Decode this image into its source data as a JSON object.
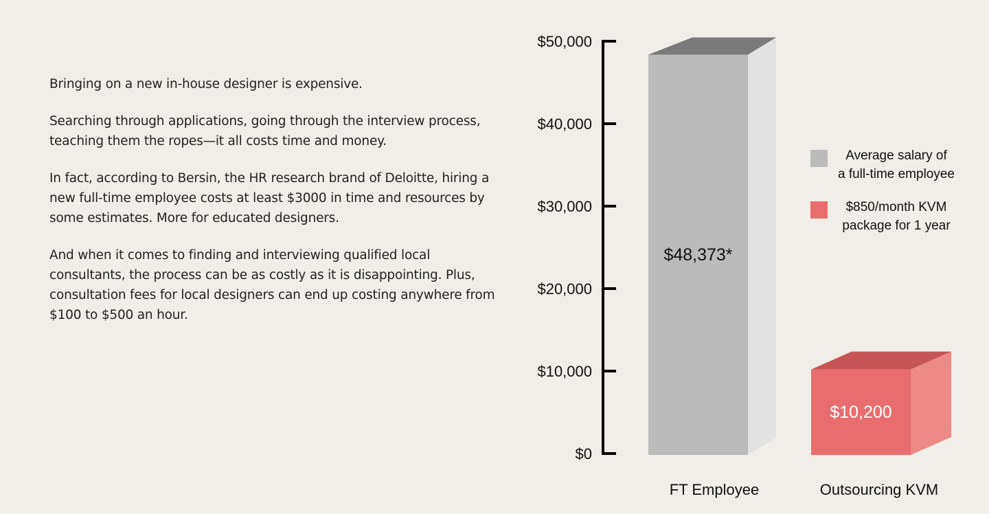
{
  "article": {
    "paragraphs": [
      "Bringing on a new in-house designer is expensive.",
      "Searching through applications, going through the interview process, teaching them the ropes—it all costs time and money.",
      "In fact, according to Bersin, the HR research brand of Deloitte, hiring a new full-time employee costs at least $3000 in time and resources by some estimates. More for educated designers.",
      "And when it comes to finding and interviewing qualified local consultants, the process can be as costly as it is disappointing. Plus, consultation fees for local designers can end up costing anywhere from $100 to $500 an hour."
    ]
  },
  "chart_data": {
    "type": "bar",
    "style": "3d-column",
    "categories": [
      "FT Employee",
      "Outsourcing KVM"
    ],
    "values": [
      48373,
      10200
    ],
    "data_labels": [
      "$48,373*",
      "$10,200"
    ],
    "ylim": [
      0,
      50000
    ],
    "yticks": [
      0,
      10000,
      20000,
      30000,
      40000,
      50000
    ],
    "ytick_labels": [
      "$0",
      "$10,000",
      "$20,000",
      "$30,000",
      "$40,000",
      "$50,000"
    ],
    "grid": false,
    "legend_placement": "right",
    "legend": [
      {
        "lines": [
          "Average salary of",
          "a full-time employee"
        ],
        "color": "#bbbbbb"
      },
      {
        "lines": [
          "$850/month KVM",
          "package for 1 year"
        ],
        "color": "#e96d6d"
      }
    ],
    "colors": {
      "ft": {
        "front": "#bbbbbb",
        "top": "#7a7a7a",
        "side": "#e2e2e2",
        "label": "#111111"
      },
      "kvm": {
        "front": "#e96d6d",
        "top": "#c85555",
        "side": "#ec8a86",
        "label": "#ffffff"
      }
    }
  }
}
